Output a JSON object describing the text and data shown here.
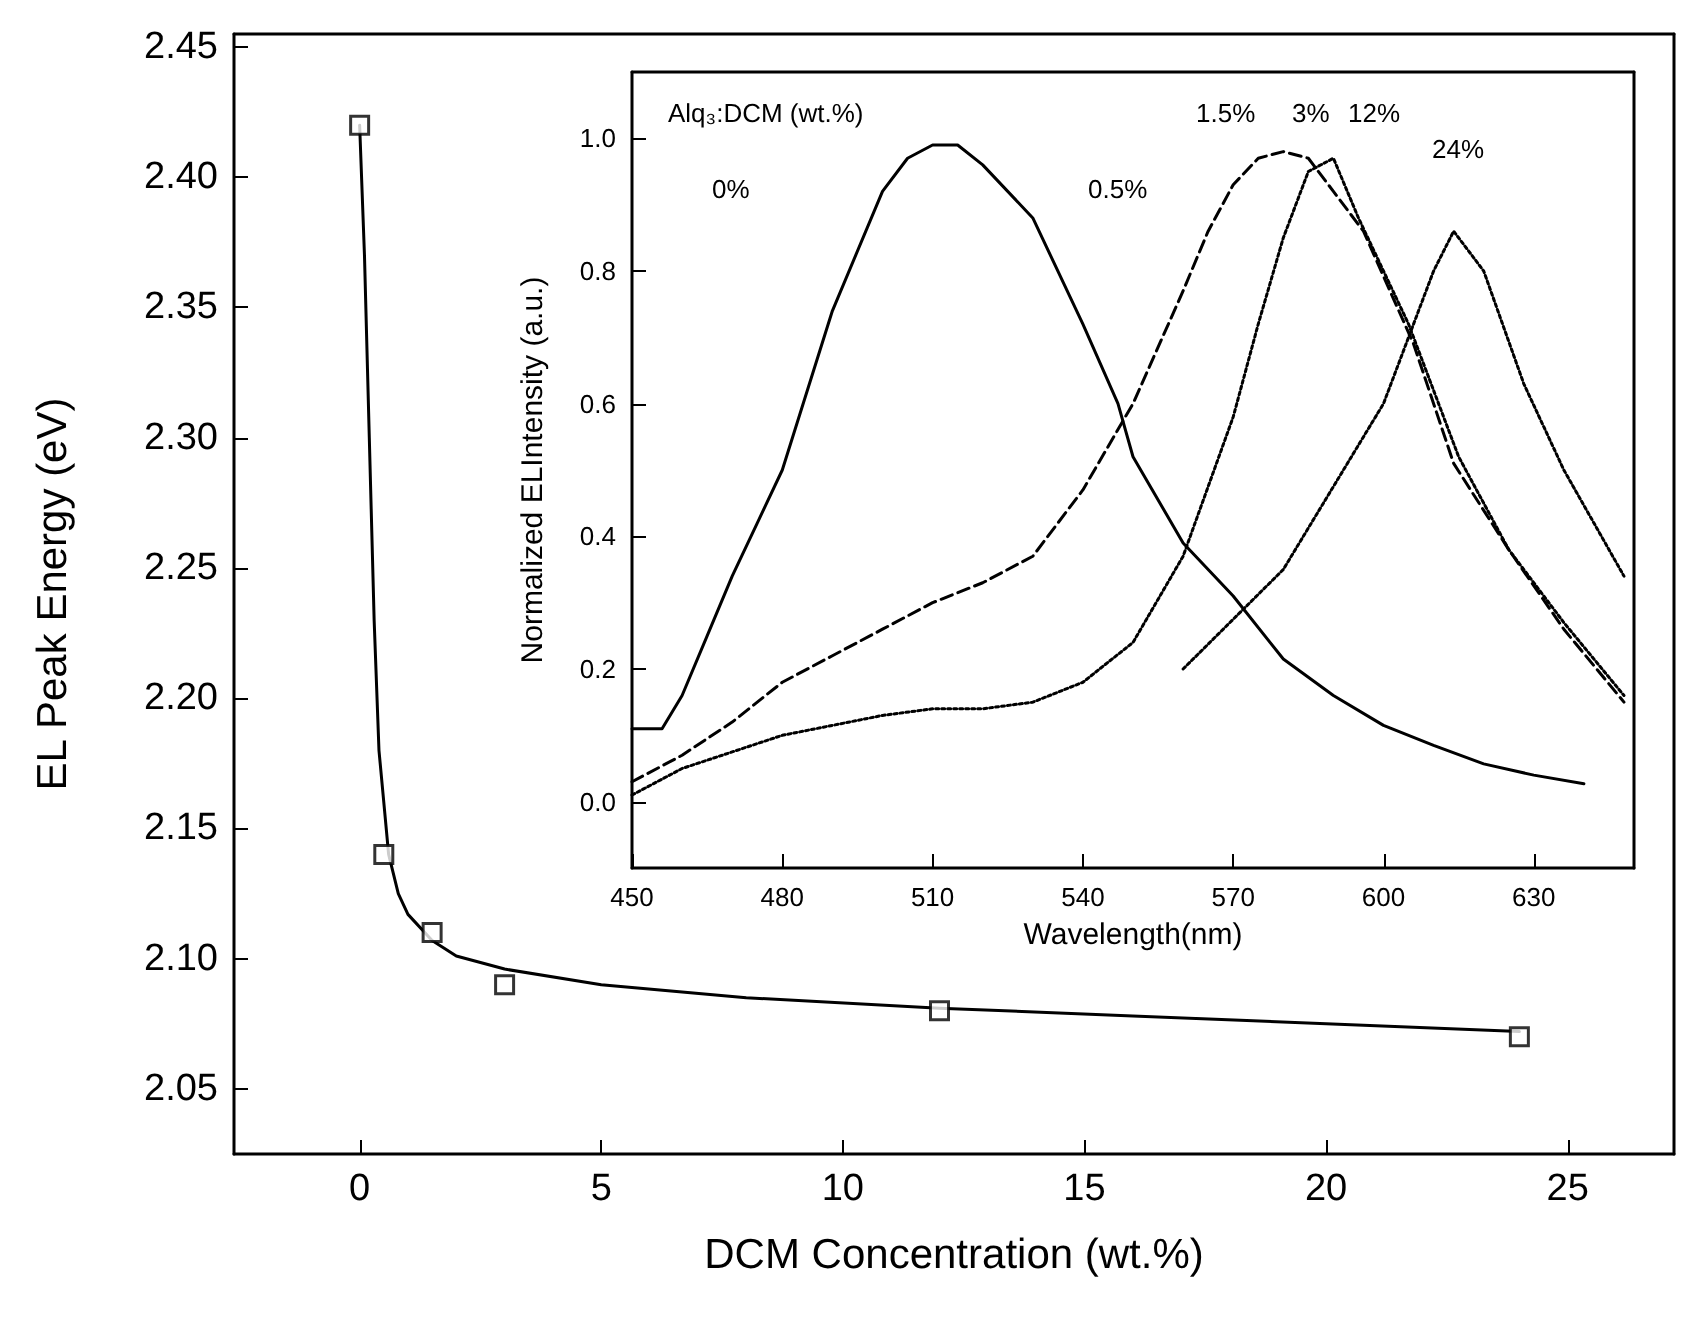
{
  "chart_data": [
    {
      "type": "line",
      "xlabel": "DCM Concentration (wt.%)",
      "ylabel": "EL Peak Energy (eV)",
      "xlim": [
        -2.6,
        27.2
      ],
      "ylim": [
        2.025,
        2.455
      ],
      "xticks": [
        0,
        5,
        10,
        15,
        20,
        25
      ],
      "yticks": [
        {
          "value": 2.05,
          "label": "2.05"
        },
        {
          "value": 2.1,
          "label": "2.10"
        },
        {
          "value": 2.15,
          "label": "2.15"
        },
        {
          "value": 2.2,
          "label": "2.20"
        },
        {
          "value": 2.25,
          "label": "2.25"
        },
        {
          "value": 2.3,
          "label": "2.30"
        },
        {
          "value": 2.35,
          "label": "2.35"
        },
        {
          "value": 2.4,
          "label": "2.40"
        },
        {
          "value": 2.45,
          "label": "2.45"
        }
      ],
      "grid": false,
      "series": [
        {
          "type": "scatter",
          "marker": "square",
          "color": "#000000",
          "x": [
            0,
            0.5,
            1.5,
            3,
            12,
            24
          ],
          "values": [
            2.42,
            2.14,
            2.11,
            2.09,
            2.08,
            2.07
          ]
        },
        {
          "marker": "none",
          "line_style": "solid",
          "color": "#000000",
          "x": [
            0,
            0.1,
            0.2,
            0.3,
            0.4,
            0.6,
            0.8,
            1,
            1.5,
            2,
            3,
            5,
            8,
            12,
            16,
            20,
            24
          ],
          "values": [
            2.42,
            2.37,
            2.3,
            2.23,
            2.18,
            2.14,
            2.125,
            2.117,
            2.107,
            2.101,
            2.096,
            2.09,
            2.085,
            2.081,
            2.078,
            2.075,
            2.072
          ]
        }
      ]
    },
    {
      "type": "line",
      "xlabel": "Wavelength(nm)",
      "ylabel": "Normalized ELIntensity (a.u.)",
      "xlim": [
        450,
        650
      ],
      "ylim": [
        -0.1,
        1.1
      ],
      "xticks": [
        450,
        480,
        510,
        540,
        570,
        600,
        630
      ],
      "yticks": [
        {
          "value": 0,
          "label": "0.0"
        },
        {
          "value": 0.2,
          "label": "0.2"
        },
        {
          "value": 0.4,
          "label": "0.4"
        },
        {
          "value": 0.6,
          "label": "0.6"
        },
        {
          "value": 0.8,
          "label": "0.8"
        },
        {
          "value": 1,
          "label": "1.0"
        }
      ],
      "grid": false,
      "annotations": [
        "Alq₃:DCM (wt.%)",
        "0%",
        "0.5%",
        "1.5%",
        "3%",
        "12%",
        "24%"
      ],
      "series": [
        {
          "line_style": "solid",
          "color": "#000000",
          "x": [
            450,
            456,
            460,
            465,
            470,
            475,
            480,
            490,
            500,
            505,
            510,
            515,
            520,
            530,
            540,
            547,
            550,
            560,
            570,
            580,
            590,
            600,
            610,
            620,
            630,
            640
          ],
          "values": [
            0.11,
            0.11,
            0.16,
            0.25,
            0.34,
            0.42,
            0.5,
            0.74,
            0.92,
            0.97,
            0.99,
            0.99,
            0.96,
            0.88,
            0.72,
            0.6,
            0.52,
            0.39,
            0.31,
            0.215,
            0.16,
            0.115,
            0.085,
            0.057,
            0.04,
            0.027
          ]
        },
        {
          "line_style": "dashed",
          "color": "#000000",
          "x": [
            450,
            460,
            470,
            480,
            490,
            500,
            510,
            520,
            530,
            540,
            550,
            560,
            565,
            570,
            575,
            580,
            585,
            590,
            596,
            606,
            614,
            625,
            636,
            648
          ],
          "values": [
            0.03,
            0.07,
            0.12,
            0.18,
            0.22,
            0.26,
            0.3,
            0.33,
            0.37,
            0.47,
            0.6,
            0.77,
            0.86,
            0.93,
            0.97,
            0.98,
            0.97,
            0.92,
            0.86,
            0.69,
            0.51,
            0.38,
            0.26,
            0.15
          ]
        },
        {
          "line_style": "dotted",
          "color": "#000000",
          "x": [
            450,
            460,
            480,
            500,
            510,
            520,
            530,
            540,
            550,
            560,
            570,
            575,
            580,
            585,
            590,
            595,
            605,
            615,
            625,
            636,
            648
          ],
          "values": [
            0.01,
            0.05,
            0.1,
            0.13,
            0.14,
            0.14,
            0.15,
            0.18,
            0.24,
            0.37,
            0.58,
            0.72,
            0.85,
            0.95,
            0.97,
            0.88,
            0.72,
            0.52,
            0.38,
            0.27,
            0.16
          ]
        },
        {
          "line_style": "dotted",
          "color": "#000000",
          "x": [
            560,
            580,
            600,
            610,
            614,
            620,
            628,
            636,
            642,
            648
          ],
          "values": [
            0.2,
            0.35,
            0.6,
            0.8,
            0.86,
            0.8,
            0.63,
            0.5,
            0.42,
            0.34
          ]
        }
      ]
    }
  ]
}
